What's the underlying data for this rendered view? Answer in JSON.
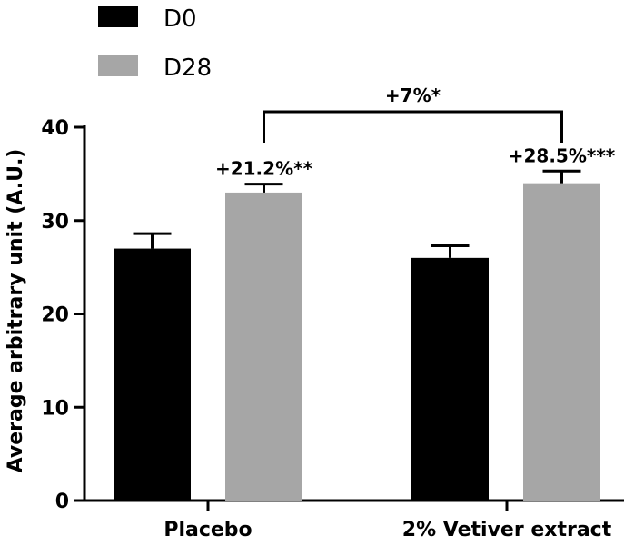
{
  "chart_data": {
    "type": "bar",
    "title": "",
    "xlabel": "",
    "ylabel": "Average arbitrary unit (A.U.)",
    "ylim": [
      0,
      40
    ],
    "yticks": [
      0,
      10,
      20,
      30,
      40
    ],
    "categories": [
      "Placebo",
      "2% Vetiver extract"
    ],
    "series": [
      {
        "name": "D0",
        "color": "#000000",
        "values": [
          27,
          26
        ],
        "errors": [
          1.6,
          1.3
        ]
      },
      {
        "name": "D28",
        "color": "#a6a6a6",
        "values": [
          33,
          34
        ],
        "errors": [
          0.9,
          1.3
        ]
      }
    ],
    "legend": {
      "placement": "top-left",
      "entries": [
        "D0",
        "D28"
      ]
    },
    "annotations": {
      "series_changes": [
        "+21.2%**",
        "+28.5%***"
      ],
      "comparison": {
        "label": "+7%*",
        "between": [
          "Placebo D28",
          "2% Vetiver extract D28"
        ]
      }
    },
    "grid": false
  }
}
